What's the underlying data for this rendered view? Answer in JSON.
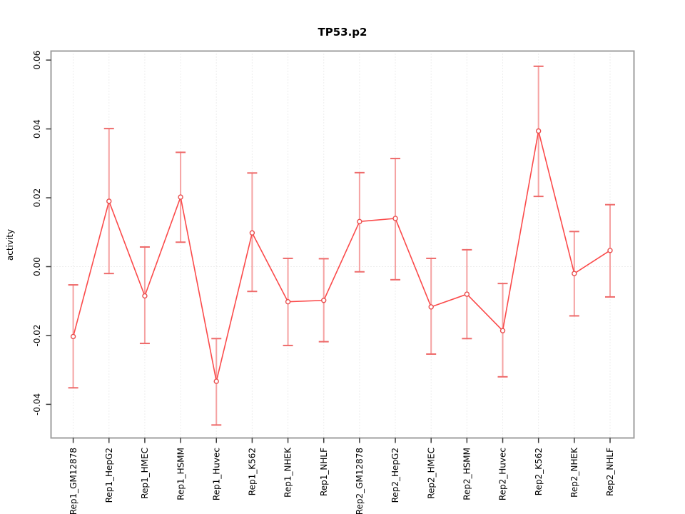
{
  "header": {
    "title": "TP53.p2"
  },
  "chart_data": {
    "type": "line",
    "title": "TP53.p2",
    "xlabel": "",
    "ylabel": "activity",
    "legend_position": "none",
    "marker": "open-circle",
    "error_bars": true,
    "grid": "vertical dotted gridline at each category plus dotted horizontal line at y=0",
    "categories": [
      "Rep1_GM12878",
      "Rep1_HepG2",
      "Rep1_HMEC",
      "Rep1_HSMM",
      "Rep1_Huvec",
      "Rep1_K562",
      "Rep1_NHEK",
      "Rep1_NHLF",
      "Rep2_GM12878",
      "Rep2_HepG2",
      "Rep2_HMEC",
      "Rep2_HSMM",
      "Rep2_Huvec",
      "Rep2_K562",
      "Rep2_NHEK",
      "Rep2_NHLF"
    ],
    "series": [
      {
        "name": "activity",
        "values": [
          -0.0203,
          0.019,
          -0.0085,
          0.0202,
          -0.0333,
          0.0098,
          -0.0102,
          -0.0098,
          0.0131,
          0.014,
          -0.0117,
          -0.008,
          -0.0186,
          0.0394,
          -0.002,
          0.0047
        ],
        "ci_upper": [
          -0.0053,
          0.0401,
          0.0057,
          0.0332,
          -0.0209,
          0.0272,
          0.0024,
          0.0023,
          0.0273,
          0.0314,
          0.0024,
          0.0049,
          -0.0049,
          0.0582,
          0.0102,
          0.018
        ],
        "ci_lower": [
          -0.0352,
          -0.002,
          -0.0223,
          0.0071,
          -0.046,
          -0.0072,
          -0.0229,
          -0.0218,
          -0.0015,
          -0.0038,
          -0.0254,
          -0.0209,
          -0.032,
          0.0204,
          -0.0143,
          -0.0088
        ]
      }
    ],
    "yticks": [
      -0.04,
      -0.02,
      0.0,
      0.02,
      0.04,
      0.06
    ],
    "ytick_labels": [
      "-0.04",
      "-0.02",
      "0.00",
      "0.02",
      "0.04",
      "0.06"
    ],
    "ylim": [
      -0.0497,
      0.0625
    ],
    "colors": {
      "line": "#fb4a4a",
      "error_bar": "#f5a2a2",
      "error_cap": "#ee6a6a",
      "marker_stroke": "#e94f4f",
      "marker_fill": "#ffffff",
      "grid": "#dcdcdc",
      "zero_line": "#d8d8d8",
      "border": "#9e9e9e",
      "tick": "#3a3a3a",
      "text": "#000000"
    }
  }
}
